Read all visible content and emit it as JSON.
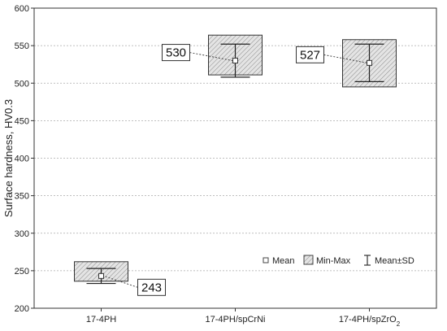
{
  "chart_data": {
    "type": "box",
    "ylabel": "Surface hardness, HV0.3",
    "ylim": [
      200,
      600
    ],
    "yticks": [
      200,
      250,
      300,
      350,
      400,
      450,
      500,
      550,
      600
    ],
    "grid": true,
    "categories": [
      {
        "label": "17-4PH",
        "base": "17-4PH",
        "sub": "",
        "tail": ""
      },
      {
        "label": "17-4PH/spCrNi",
        "base": "17-4PH/spCrNi",
        "sub": "",
        "tail": ""
      },
      {
        "label": "17-4PH/spZrO2",
        "base": "17-4PH/spZrO",
        "sub": "2",
        "tail": ""
      }
    ],
    "series": [
      {
        "mean": 243,
        "min": 236,
        "max": 262,
        "sd_low": 233,
        "sd_high": 253,
        "callout": "243",
        "callout_side": "right-below"
      },
      {
        "mean": 530,
        "min": 511,
        "max": 564,
        "sd_low": 508,
        "sd_high": 552,
        "callout": "530",
        "callout_side": "left"
      },
      {
        "mean": 527,
        "min": 495,
        "max": 558,
        "sd_low": 502,
        "sd_high": 552,
        "callout": "527",
        "callout_side": "left"
      }
    ],
    "legend": {
      "placement": "lower-right",
      "items": [
        {
          "key": "mean",
          "label": "Mean"
        },
        {
          "key": "minmax",
          "label": "Min-Max"
        },
        {
          "key": "sd",
          "label": "Mean±SD"
        }
      ]
    }
  }
}
